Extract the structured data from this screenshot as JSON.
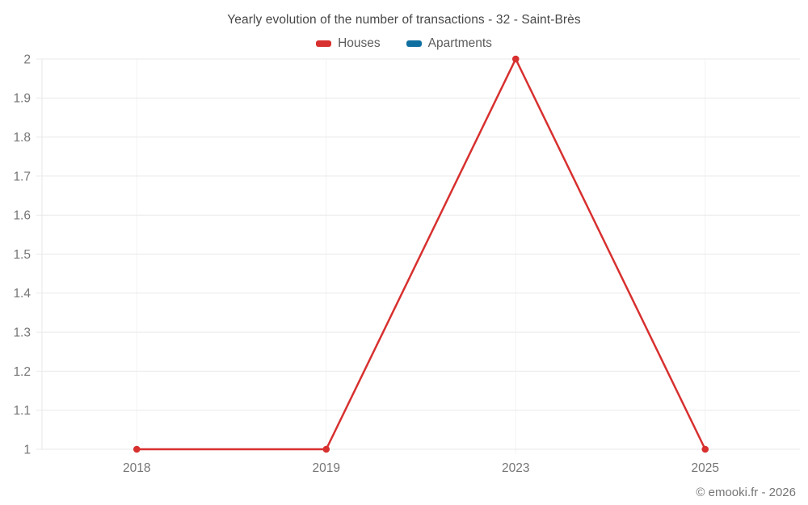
{
  "title": "Yearly evolution of the number of transactions - 32 - Saint-Brès",
  "legend": [
    {
      "label": "Houses",
      "color": "#d7302f"
    },
    {
      "label": "Apartments",
      "color": "#0f6fa0"
    }
  ],
  "footer": "© emooki.fr - 2026",
  "colors": {
    "grid_horizontal": "#e9e9e9",
    "grid_vertical": "#f3f3f3",
    "axis_line": "#e7e7e7",
    "axis_text": "#757575",
    "houses_red": "#d7302f",
    "apartments_blue": "#0f6fa0"
  },
  "chart_data": {
    "type": "line",
    "title": "Yearly evolution of the number of transactions - 32 - Saint-Brès",
    "categories": [
      "2018",
      "2019",
      "2023",
      "2025"
    ],
    "series": [
      {
        "name": "Houses",
        "color": "#d7302f",
        "values": [
          1,
          1,
          2,
          1
        ]
      },
      {
        "name": "Apartments",
        "color": "#0f6fa0",
        "values": [
          null,
          null,
          null,
          null
        ]
      }
    ],
    "xlabel": "",
    "ylabel": "",
    "ylim": [
      1,
      2
    ],
    "yticks": [
      1,
      1.1,
      1.2,
      1.3,
      1.4,
      1.5,
      1.6,
      1.7,
      1.8,
      1.9,
      2
    ],
    "ytick_labels": [
      "1",
      "1.1",
      "1.2",
      "1.3",
      "1.4",
      "1.5",
      "1.6",
      "1.7",
      "1.8",
      "1.9",
      "2"
    ],
    "grid": true,
    "legend_position": "top",
    "marker_radius": 4.3,
    "line_width": 2.5
  }
}
